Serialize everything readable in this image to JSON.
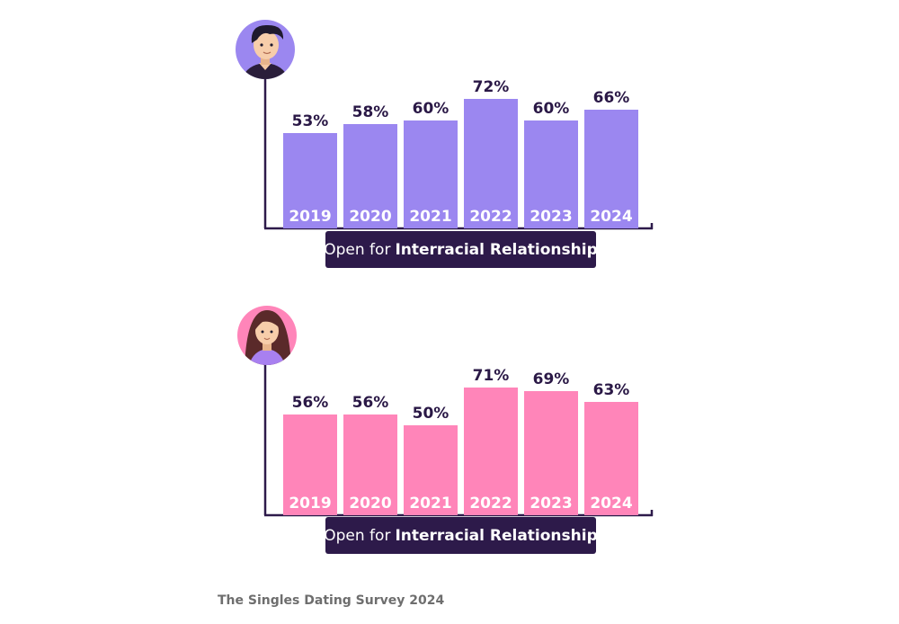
{
  "colors": {
    "male_bar": "#9b87f0",
    "female_bar": "#ff85b9",
    "axis": "#2d1a4a",
    "value_text": "#2a1846",
    "caption_bg": "#2d1a4a",
    "source_text": "#6e6e6e"
  },
  "chart_data": [
    {
      "type": "bar",
      "group_icon": "man-avatar-icon",
      "categories": [
        "2019",
        "2020",
        "2021",
        "2022",
        "2023",
        "2024"
      ],
      "values": [
        53,
        58,
        60,
        72,
        60,
        66
      ],
      "value_labels": [
        "53%",
        "58%",
        "60%",
        "72%",
        "60%",
        "66%"
      ],
      "unit": "%",
      "caption_normal": "Open for",
      "caption_bold": "Interracial Relationship",
      "ylim": [
        0,
        100
      ],
      "grid": false
    },
    {
      "type": "bar",
      "group_icon": "woman-avatar-icon",
      "categories": [
        "2019",
        "2020",
        "2021",
        "2022",
        "2023",
        "2024"
      ],
      "values": [
        56,
        56,
        50,
        71,
        69,
        63
      ],
      "value_labels": [
        "56%",
        "56%",
        "50%",
        "71%",
        "69%",
        "63%"
      ],
      "unit": "%",
      "caption_normal": "Open for",
      "caption_bold": "Interracial Relationship",
      "ylim": [
        0,
        100
      ],
      "grid": false
    }
  ],
  "footer": {
    "source": "The Singles Dating Survey 2024"
  }
}
